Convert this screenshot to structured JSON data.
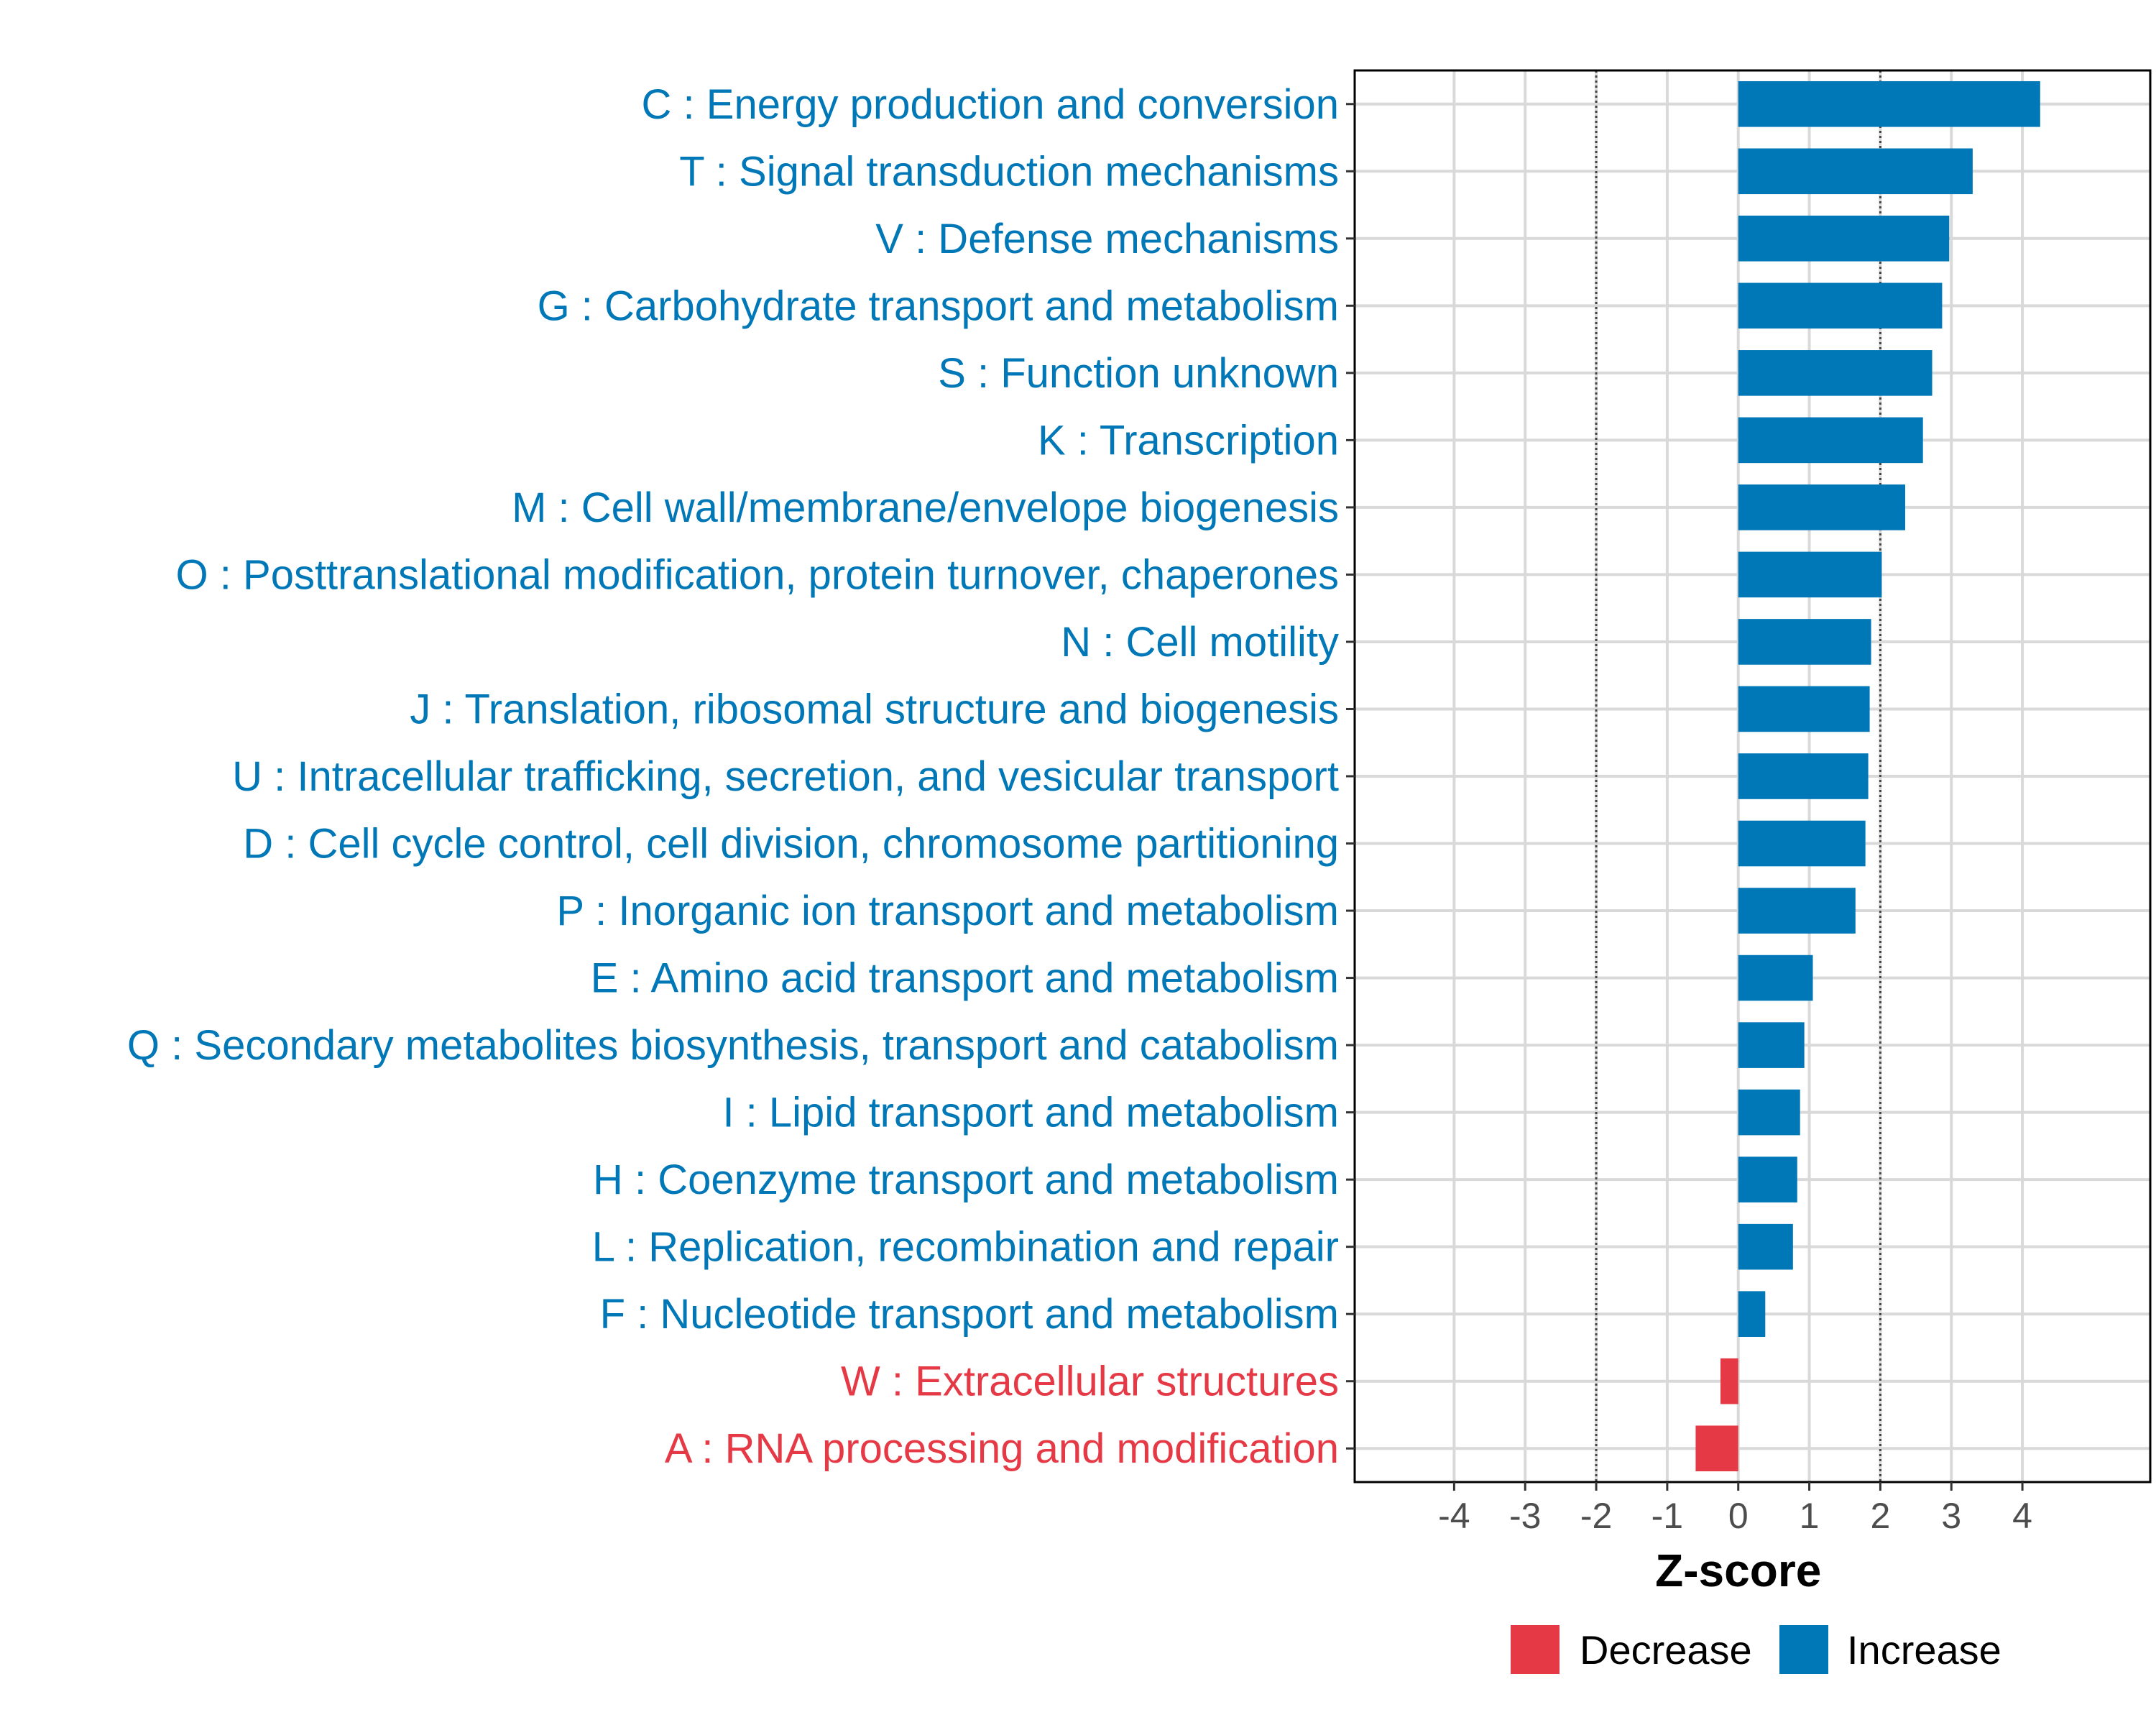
{
  "chart_data": {
    "type": "bar",
    "orientation": "horizontal",
    "title": "",
    "xlabel": "Z-score",
    "ylabel": "",
    "xlim": [
      -5.4,
      5.8
    ],
    "xticks": [
      -4,
      -3,
      -2,
      -1,
      0,
      1,
      2,
      3,
      4
    ],
    "reference_lines": [
      -2,
      2
    ],
    "grid": true,
    "legend_position": "bottom",
    "colors": {
      "Decrease": "#E63946",
      "Increase": "#0077B6"
    },
    "legend": [
      {
        "label": "Decrease",
        "color": "#E63946"
      },
      {
        "label": "Increase",
        "color": "#0077B6"
      }
    ],
    "categories": [
      "C : Energy production and conversion",
      "T : Signal transduction mechanisms",
      "V : Defense mechanisms",
      "G : Carbohydrate transport and metabolism",
      "S : Function unknown",
      "K : Transcription",
      "M : Cell wall/membrane/envelope biogenesis",
      "O : Posttranslational modification, protein turnover, chaperones",
      "N : Cell motility",
      "J : Translation, ribosomal structure and biogenesis",
      "U : Intracellular trafficking, secretion, and vesicular transport",
      "D : Cell cycle control, cell division, chromosome partitioning",
      "P : Inorganic ion transport and metabolism",
      "E : Amino acid transport and metabolism",
      "Q : Secondary metabolites biosynthesis, transport and catabolism",
      "I : Lipid transport and metabolism",
      "H : Coenzyme transport and metabolism",
      "L : Replication, recombination and repair",
      "F : Nucleotide transport and metabolism",
      "W : Extracellular structures",
      "A : RNA processing and modification"
    ],
    "values": [
      4.25,
      3.3,
      2.97,
      2.87,
      2.73,
      2.6,
      2.35,
      2.02,
      1.87,
      1.85,
      1.83,
      1.79,
      1.65,
      1.05,
      0.93,
      0.87,
      0.83,
      0.77,
      0.38,
      -0.25,
      -0.6
    ],
    "direction": [
      "Increase",
      "Increase",
      "Increase",
      "Increase",
      "Increase",
      "Increase",
      "Increase",
      "Increase",
      "Increase",
      "Increase",
      "Increase",
      "Increase",
      "Increase",
      "Increase",
      "Increase",
      "Increase",
      "Increase",
      "Increase",
      "Increase",
      "Decrease",
      "Decrease"
    ]
  }
}
